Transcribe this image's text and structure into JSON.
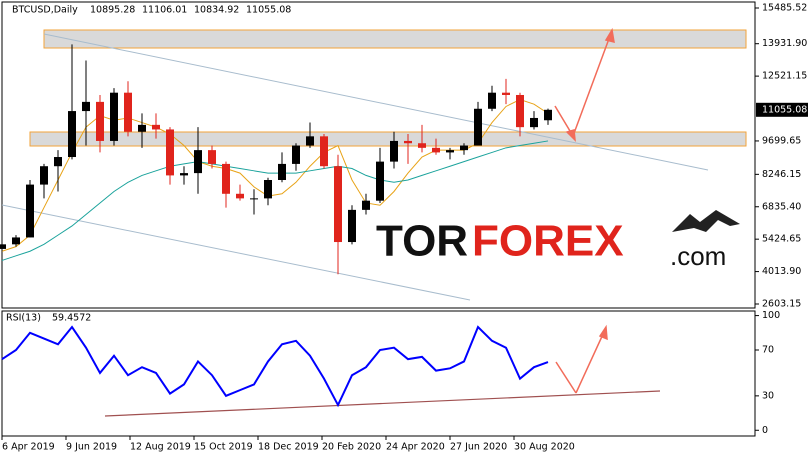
{
  "chart_data": [
    {
      "type": "candlestick",
      "symbol": "BTCUSD,Daily",
      "ohlc_header": [
        10895.28,
        11106.01,
        10834.92,
        11055.08
      ],
      "x": [
        "2019-04-06",
        "2019-04-20",
        "2019-05-04",
        "2019-05-18",
        "2019-06-01",
        "2019-06-15",
        "2019-06-29",
        "2019-07-13",
        "2019-07-27",
        "2019-08-10",
        "2019-08-24",
        "2019-09-07",
        "2019-09-21",
        "2019-10-05",
        "2019-10-19",
        "2019-11-02",
        "2019-11-16",
        "2019-11-30",
        "2019-12-14",
        "2019-12-28",
        "2020-01-11",
        "2020-01-25",
        "2020-02-08",
        "2020-02-22",
        "2020-03-07",
        "2020-03-21",
        "2020-04-04",
        "2020-04-18",
        "2020-05-02",
        "2020-05-16",
        "2020-05-30",
        "2020-06-13",
        "2020-06-27",
        "2020-07-11",
        "2020-07-25",
        "2020-08-08",
        "2020-08-22",
        "2020-09-05",
        "2020-09-19",
        "2020-10-03"
      ],
      "open": [
        5000,
        5200,
        5500,
        7800,
        8600,
        9000,
        11000,
        11400,
        9700,
        11800,
        10100,
        10400,
        10200,
        8200,
        8300,
        9300,
        8700,
        7400,
        7200,
        7200,
        8000,
        8700,
        9500,
        9900,
        8600,
        5300,
        6700,
        7100,
        8800,
        9700,
        9600,
        9400,
        9200,
        9300,
        9500,
        11100,
        11800,
        11700,
        10300,
        10600
      ],
      "high": [
        5300,
        5600,
        8000,
        8700,
        9300,
        13900,
        13200,
        11700,
        12000,
        12300,
        10900,
        10900,
        10300,
        8600,
        10300,
        9500,
        8800,
        7800,
        7600,
        8100,
        9200,
        9600,
        10500,
        10000,
        9100,
        6900,
        7400,
        9400,
        10100,
        10000,
        10400,
        9800,
        9400,
        9600,
        11400,
        12100,
        12400,
        11800,
        11000,
        11106.01
      ],
      "low": [
        4900,
        5100,
        5500,
        7200,
        7500,
        8900,
        9500,
        9200,
        9500,
        9900,
        9400,
        9800,
        7800,
        7800,
        7400,
        8500,
        6800,
        7100,
        6500,
        6900,
        7900,
        8400,
        9400,
        8500,
        3900,
        5200,
        6500,
        7000,
        8500,
        8700,
        9200,
        9100,
        8900,
        9100,
        9500,
        11000,
        11300,
        9900,
        10200,
        10400
      ],
      "close": [
        5200,
        5500,
        7800,
        8600,
        9000,
        11000,
        11400,
        9700,
        11800,
        10100,
        10400,
        10200,
        8200,
        8300,
        9300,
        8700,
        7400,
        7200,
        7200,
        8000,
        8700,
        9500,
        9900,
        8600,
        5300,
        6700,
        7100,
        8800,
        9700,
        9600,
        9400,
        9200,
        9300,
        9500,
        11100,
        11800,
        11700,
        10300,
        10700,
        11055.08
      ],
      "up_color": "#000000",
      "down_color": "#e0241c",
      "overlays": [
        {
          "color": "#e8a317",
          "values": [
            4900,
            5100,
            5600,
            6800,
            8000,
            9200,
            10300,
            10800,
            10600,
            10700,
            10500,
            10300,
            10000,
            9500,
            8800,
            8600,
            8500,
            8300,
            7700,
            7300,
            7400,
            7900,
            8600,
            9200,
            9500,
            8000,
            7000,
            6900,
            7500,
            8300,
            9000,
            9300,
            9300,
            9300,
            9600,
            10500,
            11200,
            11500,
            11300,
            10900
          ]
        },
        {
          "color": "#1ba39c",
          "values": [
            4500,
            4700,
            4900,
            5200,
            5600,
            6000,
            6500,
            7000,
            7500,
            7900,
            8200,
            8400,
            8600,
            8700,
            8800,
            8700,
            8600,
            8500,
            8400,
            8300,
            8300,
            8300,
            8400,
            8500,
            8600,
            8500,
            8200,
            8000,
            7900,
            8000,
            8200,
            8400,
            8600,
            8800,
            9000,
            9200,
            9400,
            9500,
            9600,
            9700
          ]
        }
      ],
      "ylim": [
        2429,
        15747
      ],
      "yticks": [
        15485.52,
        {
          "value": 13931.9,
          "label": "13931.90"
        },
        12521.15,
        9699.65,
        8246.15,
        {
          "value": 6835.4,
          "label": "6835.40"
        },
        5424.65,
        {
          "value": 4013.9,
          "label": "4013.90"
        },
        2603.15
      ],
      "last_price": 11055.08,
      "watermark": [
        "TOR",
        "FOREX",
        ".com"
      ]
    },
    {
      "type": "line",
      "indicator": "RSI(13)",
      "indicator_value": 59.4572,
      "color": "#0000ff",
      "values": [
        62,
        70,
        85,
        80,
        75,
        90,
        72,
        50,
        65,
        48,
        55,
        50,
        32,
        40,
        60,
        48,
        30,
        35,
        40,
        60,
        75,
        78,
        65,
        45,
        22,
        48,
        55,
        70,
        72,
        62,
        64,
        52,
        54,
        60,
        90,
        78,
        72,
        45,
        55,
        59.4572
      ],
      "ylim": [
        -5,
        104
      ],
      "yticks": [
        100,
        70,
        30,
        0
      ],
      "xticks": [
        {
          "value": "2019-04-06",
          "label": "6 Apr 2019"
        },
        {
          "value": "2019-06-09",
          "label": "9 Jun 2019"
        },
        {
          "value": "2019-08-12",
          "label": "12 Aug 2019"
        },
        {
          "value": "2019-10-15",
          "label": "15 Oct 2019"
        },
        {
          "value": "2019-12-18",
          "label": "18 Dec 2019"
        },
        {
          "value": "2020-02-20",
          "label": "20 Feb 2020"
        },
        {
          "value": "2020-04-24",
          "label": "24 Apr 2020"
        },
        {
          "value": "2020-06-27",
          "label": "27 Jun 2020"
        },
        {
          "value": "2020-08-30",
          "label": "30 Aug 2020"
        }
      ]
    }
  ]
}
